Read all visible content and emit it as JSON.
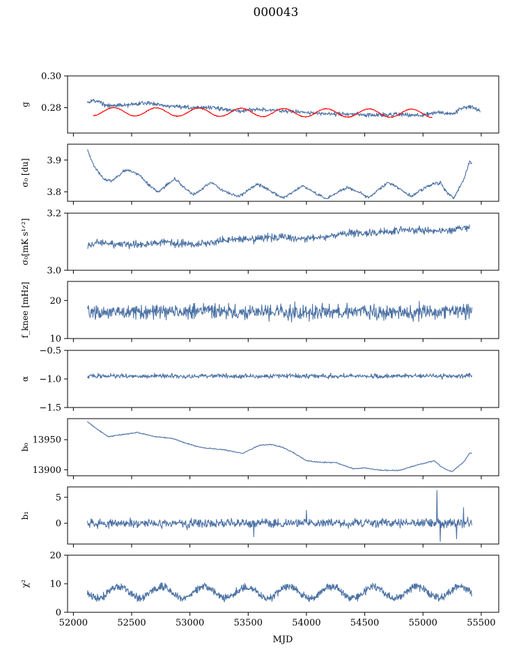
{
  "figure": {
    "title": "000043",
    "xlabel": "MJD"
  },
  "colors": {
    "primary": "#4c72a4",
    "red": "#ff0000"
  },
  "chart_data": [
    {
      "type": "line",
      "id": "g",
      "ylabel": "g",
      "xlim": [
        51950,
        55650
      ],
      "ylim": [
        0.264,
        0.3
      ],
      "yticks": [
        0.28,
        0.3
      ],
      "ytick_labels": [
        "0.28",
        "0.30"
      ],
      "series": [
        {
          "color": "#4c72a4",
          "gen": "pts",
          "noise": 0.0008,
          "pts": [
            [
              52120,
              0.283
            ],
            [
              52170,
              0.285
            ],
            [
              52300,
              0.281
            ],
            [
              52500,
              0.282
            ],
            [
              52650,
              0.283
            ],
            [
              52800,
              0.281
            ],
            [
              53000,
              0.28
            ],
            [
              53200,
              0.28
            ],
            [
              53400,
              0.278
            ],
            [
              53600,
              0.279
            ],
            [
              53800,
              0.278
            ],
            [
              54000,
              0.277
            ],
            [
              54200,
              0.276
            ],
            [
              54400,
              0.276
            ],
            [
              54600,
              0.275
            ],
            [
              54800,
              0.276
            ],
            [
              55000,
              0.275
            ],
            [
              55100,
              0.277
            ],
            [
              55250,
              0.276
            ],
            [
              55350,
              0.28
            ],
            [
              55400,
              0.281
            ],
            [
              55450,
              0.279
            ],
            [
              55490,
              0.278
            ]
          ]
        },
        {
          "color": "#ff0000",
          "gen": "sine",
          "xmin": 52170,
          "xmax": 55080,
          "base": 0.2775,
          "trend": -0.0011,
          "amp": 0.0026,
          "period": 365,
          "phase": 52620,
          "noise": 0.0002
        }
      ]
    },
    {
      "type": "line",
      "id": "sigma0_du",
      "ylabel": "σ₀ [du]",
      "xlim": [
        51950,
        55650
      ],
      "ylim": [
        3.77,
        3.95
      ],
      "yticks": [
        3.8,
        3.9
      ],
      "ytick_labels": [
        "3.8",
        "3.9"
      ],
      "series": [
        {
          "color": "#4c72a4",
          "gen": "pts",
          "noise": 0.003,
          "pts": [
            [
              52120,
              3.93
            ],
            [
              52180,
              3.88
            ],
            [
              52260,
              3.84
            ],
            [
              52330,
              3.835
            ],
            [
              52450,
              3.87
            ],
            [
              52560,
              3.855
            ],
            [
              52650,
              3.82
            ],
            [
              52730,
              3.8
            ],
            [
              52870,
              3.84
            ],
            [
              52950,
              3.815
            ],
            [
              53030,
              3.79
            ],
            [
              53180,
              3.83
            ],
            [
              53300,
              3.8
            ],
            [
              53420,
              3.785
            ],
            [
              53580,
              3.825
            ],
            [
              53700,
              3.8
            ],
            [
              53800,
              3.78
            ],
            [
              53970,
              3.82
            ],
            [
              54100,
              3.79
            ],
            [
              54170,
              3.778
            ],
            [
              54350,
              3.815
            ],
            [
              54450,
              3.8
            ],
            [
              54530,
              3.78
            ],
            [
              54700,
              3.83
            ],
            [
              54820,
              3.805
            ],
            [
              54900,
              3.785
            ],
            [
              55050,
              3.82
            ],
            [
              55150,
              3.83
            ],
            [
              55200,
              3.8
            ],
            [
              55260,
              3.78
            ],
            [
              55340,
              3.83
            ],
            [
              55400,
              3.895
            ],
            [
              55420,
              3.89
            ]
          ]
        }
      ]
    },
    {
      "type": "line",
      "id": "sigma0_mk",
      "ylabel": "σ₀[mK s¹ᐟ²]",
      "xlim": [
        51950,
        55650
      ],
      "ylim": [
        3.0,
        3.2
      ],
      "yticks": [
        3.0,
        3.2
      ],
      "ytick_labels": [
        "3.0",
        "3.2"
      ],
      "series": [
        {
          "color": "#4c72a4",
          "gen": "pts",
          "noise": 0.008,
          "pts": [
            [
              52120,
              3.08
            ],
            [
              52200,
              3.1
            ],
            [
              52400,
              3.09
            ],
            [
              52600,
              3.09
            ],
            [
              52800,
              3.1
            ],
            [
              53000,
              3.09
            ],
            [
              53200,
              3.1
            ],
            [
              53400,
              3.11
            ],
            [
              53600,
              3.11
            ],
            [
              53800,
              3.12
            ],
            [
              54000,
              3.11
            ],
            [
              54200,
              3.12
            ],
            [
              54400,
              3.13
            ],
            [
              54600,
              3.13
            ],
            [
              54800,
              3.14
            ],
            [
              55000,
              3.14
            ],
            [
              55200,
              3.14
            ],
            [
              55400,
              3.15
            ]
          ]
        }
      ]
    },
    {
      "type": "line",
      "id": "fknee",
      "ylabel": "f_knee [mHz]",
      "xlim": [
        51950,
        55650
      ],
      "ylim": [
        10,
        25
      ],
      "yticks": [
        10,
        20
      ],
      "ytick_labels": [
        "10",
        "20"
      ],
      "series": [
        {
          "color": "#4c72a4",
          "gen": "pts",
          "noise": 1.2,
          "pts": [
            [
              52120,
              17.0
            ],
            [
              55420,
              17.0
            ]
          ]
        }
      ]
    },
    {
      "type": "line",
      "id": "alpha",
      "ylabel": "α",
      "xlim": [
        51950,
        55650
      ],
      "ylim": [
        -1.5,
        -0.5
      ],
      "yticks": [
        -1.5,
        -1.0,
        -0.5
      ],
      "ytick_labels": [
        "−1.5",
        "−1.0",
        "−0.5"
      ],
      "series": [
        {
          "color": "#4c72a4",
          "gen": "pts",
          "noise": 0.025,
          "pts": [
            [
              52120,
              -0.95
            ],
            [
              55420,
              -0.95
            ]
          ]
        }
      ]
    },
    {
      "type": "line",
      "id": "b0",
      "ylabel": "b₀",
      "xlim": [
        51950,
        55650
      ],
      "ylim": [
        13890,
        13985
      ],
      "yticks": [
        13900,
        13950
      ],
      "ytick_labels": [
        "13900",
        "13950"
      ],
      "series": [
        {
          "color": "#4c72a4",
          "gen": "pts",
          "noise": 0.5,
          "pts": [
            [
              52120,
              13980
            ],
            [
              52200,
              13968
            ],
            [
              52300,
              13955
            ],
            [
              52400,
              13958
            ],
            [
              52550,
              13962
            ],
            [
              52700,
              13955
            ],
            [
              52850,
              13952
            ],
            [
              53000,
              13942
            ],
            [
              53100,
              13937
            ],
            [
              53300,
              13933
            ],
            [
              53450,
              13927
            ],
            [
              53600,
              13941
            ],
            [
              53700,
              13942
            ],
            [
              53800,
              13937
            ],
            [
              53900,
              13927
            ],
            [
              54000,
              13915
            ],
            [
              54150,
              13912
            ],
            [
              54250,
              13912
            ],
            [
              54400,
              13902
            ],
            [
              54500,
              13903
            ],
            [
              54650,
              13899
            ],
            [
              54800,
              13899
            ],
            [
              54950,
              13908
            ],
            [
              55100,
              13915
            ],
            [
              55150,
              13906
            ],
            [
              55200,
              13900
            ],
            [
              55250,
              13897
            ],
            [
              55350,
              13913
            ],
            [
              55400,
              13928
            ],
            [
              55420,
              13927
            ]
          ]
        }
      ]
    },
    {
      "type": "line",
      "id": "b1",
      "ylabel": "b₁",
      "xlim": [
        51950,
        55650
      ],
      "ylim": [
        -4,
        7
      ],
      "yticks": [
        0,
        5
      ],
      "ytick_labels": [
        "0",
        "5"
      ],
      "series": [
        {
          "color": "#4c72a4",
          "gen": "pts",
          "noise": 0.55,
          "pts": [
            [
              52120,
              0
            ],
            [
              55420,
              0
            ]
          ],
          "spikes": [
            [
              55120,
              6.3
            ],
            [
              55150,
              -3.5
            ],
            [
              53550,
              -2.6
            ],
            [
              54000,
              2.5
            ],
            [
              55290,
              -3.0
            ],
            [
              55350,
              3.0
            ]
          ]
        }
      ]
    },
    {
      "type": "line",
      "id": "chi2",
      "ylabel": "χ²",
      "xlim": [
        51950,
        55650
      ],
      "ylim": [
        0,
        20
      ],
      "yticks": [
        0,
        10,
        20
      ],
      "ytick_labels": [
        "0",
        "10",
        "20"
      ],
      "xticks": [
        52000,
        52500,
        53000,
        53500,
        54000,
        54500,
        55000,
        55500
      ],
      "xtick_labels": [
        "52000",
        "52500",
        "53000",
        "53500",
        "54000",
        "54500",
        "55000",
        "55500"
      ],
      "series": [
        {
          "color": "#4c72a4",
          "gen": "sine",
          "xmin": 52120,
          "xmax": 55420,
          "base": 7.0,
          "trend": 0,
          "amp": 2.0,
          "period": 365,
          "phase": 52300,
          "noise": 1.0
        }
      ]
    }
  ]
}
